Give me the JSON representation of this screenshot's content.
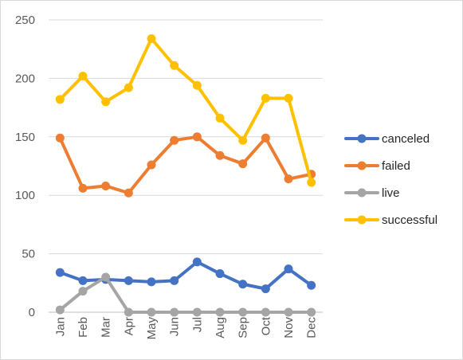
{
  "chart_data": {
    "type": "line",
    "title": "",
    "xlabel": "",
    "ylabel": "",
    "categories": [
      "Jan",
      "Feb",
      "Mar",
      "Apr",
      "May",
      "Jun",
      "Jul",
      "Aug",
      "Sep",
      "Oct",
      "Nov",
      "Dec"
    ],
    "ylim": [
      0,
      250
    ],
    "yticks": [
      0,
      50,
      100,
      150,
      200,
      250
    ],
    "grid": true,
    "legend_position": "right",
    "series": [
      {
        "name": "canceled",
        "color": "#4472C4",
        "values": [
          34,
          27,
          28,
          27,
          26,
          27,
          43,
          33,
          24,
          20,
          37,
          23
        ]
      },
      {
        "name": "failed",
        "color": "#ED7D31",
        "values": [
          149,
          106,
          108,
          102,
          126,
          147,
          150,
          134,
          127,
          149,
          114,
          118
        ]
      },
      {
        "name": "live",
        "color": "#A5A5A5",
        "values": [
          2,
          18,
          30,
          0,
          0,
          0,
          0,
          0,
          0,
          0,
          0,
          0
        ]
      },
      {
        "name": "successful",
        "color": "#FFC000",
        "values": [
          182,
          202,
          180,
          192,
          234,
          211,
          194,
          166,
          147,
          183,
          183,
          111
        ]
      }
    ]
  }
}
